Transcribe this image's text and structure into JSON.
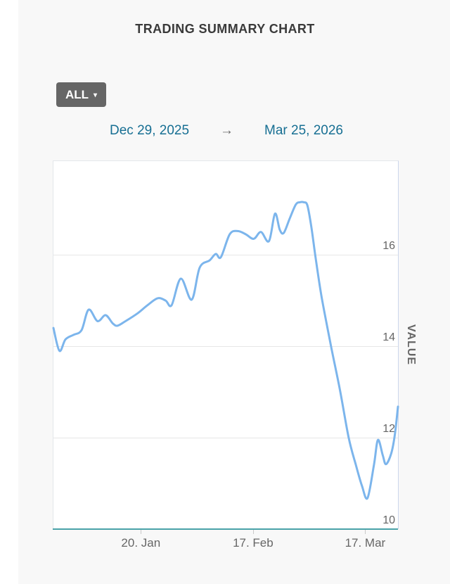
{
  "header": {
    "title": "TRADING SUMMARY CHART"
  },
  "controls": {
    "range_button": {
      "label": "ALL",
      "caret": "▾"
    },
    "date_from": "Dec 29, 2025",
    "arrow": "→",
    "date_to": "Mar 25, 2026"
  },
  "colors": {
    "panel_bg": "#f8f8f8",
    "plot_bg": "#ffffff",
    "title_text": "#3a3a3a",
    "button_bg": "#666666",
    "date_link": "#176f93",
    "line": "#7cb5ec",
    "x_axis_line": "#49a2a8",
    "gridline": "#e6e6e6",
    "axis_label": "#666666"
  },
  "chart_data": {
    "type": "line",
    "title": "TRADING SUMMARY CHART",
    "xlabel": "",
    "ylabel": "VALUE",
    "x_start_date": "Dec 29, 2025",
    "x_end_date": "Mar 25, 2026",
    "x_range_days": 86,
    "ylim": [
      10,
      18.05
    ],
    "grid": true,
    "legend": "none",
    "y_ticks": [
      16,
      14,
      12,
      10
    ],
    "x_ticks": [
      {
        "day": 22,
        "label": "20. Jan"
      },
      {
        "day": 50,
        "label": "17. Feb"
      },
      {
        "day": 78,
        "label": "17. Mar"
      }
    ],
    "series": [
      {
        "name": "VALUE",
        "points_day_value": [
          [
            0,
            14.4
          ],
          [
            1.5,
            13.9
          ],
          [
            3,
            14.15
          ],
          [
            5,
            14.25
          ],
          [
            7,
            14.35
          ],
          [
            8.8,
            14.8
          ],
          [
            11,
            14.55
          ],
          [
            13,
            14.68
          ],
          [
            14.8,
            14.5
          ],
          [
            16,
            14.45
          ],
          [
            18,
            14.55
          ],
          [
            21,
            14.72
          ],
          [
            23.5,
            14.9
          ],
          [
            26,
            15.05
          ],
          [
            28,
            15.0
          ],
          [
            29.5,
            14.9
          ],
          [
            31.8,
            15.48
          ],
          [
            34.5,
            15.02
          ],
          [
            36.5,
            15.72
          ],
          [
            39,
            15.88
          ],
          [
            40.5,
            16.02
          ],
          [
            41.8,
            15.95
          ],
          [
            44,
            16.45
          ],
          [
            46,
            16.52
          ],
          [
            48,
            16.45
          ],
          [
            50,
            16.35
          ],
          [
            51.8,
            16.5
          ],
          [
            53.8,
            16.3
          ],
          [
            55.3,
            16.9
          ],
          [
            56.5,
            16.55
          ],
          [
            57.5,
            16.48
          ],
          [
            59,
            16.8
          ],
          [
            60.5,
            17.1
          ],
          [
            61.5,
            17.15
          ],
          [
            62.5,
            17.15
          ],
          [
            63.4,
            17.08
          ],
          [
            64.4,
            16.6
          ],
          [
            65.5,
            15.9
          ],
          [
            67,
            15.05
          ],
          [
            69.3,
            14.0
          ],
          [
            71.5,
            13.05
          ],
          [
            73.7,
            12.0
          ],
          [
            75.5,
            11.4
          ],
          [
            77,
            10.95
          ],
          [
            78.4,
            10.68
          ],
          [
            80,
            11.4
          ],
          [
            81,
            11.95
          ],
          [
            82.2,
            11.62
          ],
          [
            83,
            11.42
          ],
          [
            84.3,
            11.65
          ],
          [
            85.2,
            12.05
          ],
          [
            86,
            12.68
          ]
        ]
      }
    ]
  }
}
